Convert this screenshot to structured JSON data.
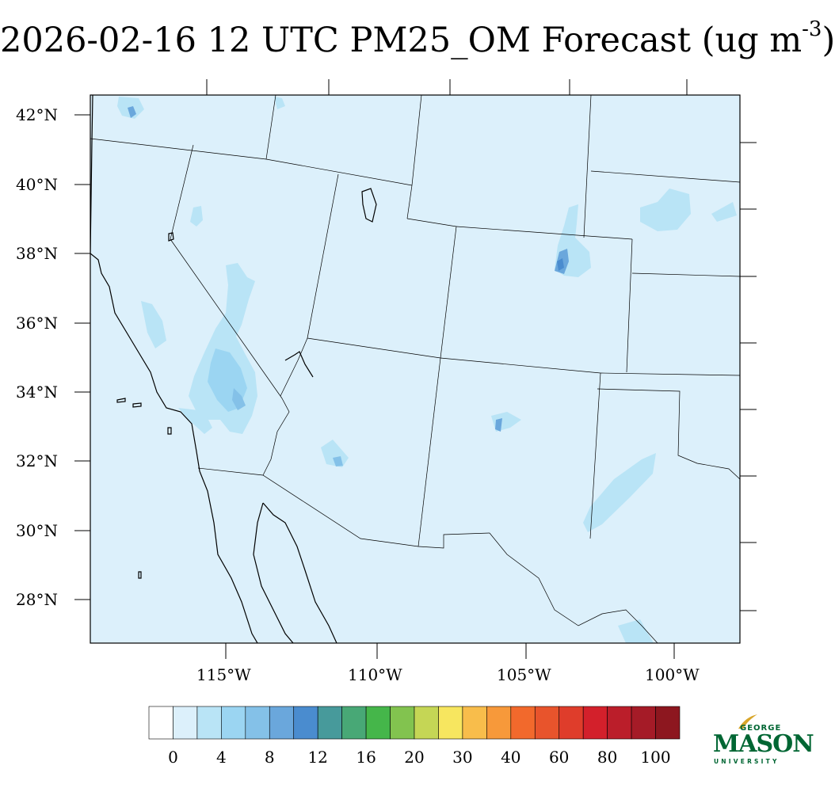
{
  "title": {
    "main": "2026-02-16 12 UTC PM25_OM Forecast (ug m",
    "exponent": "-3",
    "close": ")"
  },
  "map": {
    "variable": "PM25_OM",
    "lat_labels": [
      "42°N",
      "40°N",
      "38°N",
      "36°N",
      "34°N",
      "32°N",
      "30°N",
      "28°N"
    ],
    "lon_labels": [
      "115°W",
      "110°W",
      "105°W",
      "100°W"
    ],
    "background_color": "#dcf0fb",
    "border_color": "#000000"
  },
  "colorbar": {
    "labels": [
      "0",
      "4",
      "8",
      "12",
      "16",
      "20",
      "30",
      "40",
      "60",
      "80",
      "100"
    ],
    "colors": [
      "#ffffff",
      "#dcf0fb",
      "#b9e4f6",
      "#9bd5f2",
      "#84c1e8",
      "#6aa7dc",
      "#4a8ccf",
      "#479a9b",
      "#48a876",
      "#45b64a",
      "#82c34f",
      "#c5d655",
      "#f7e65f",
      "#f8bd4b",
      "#f7993a",
      "#f2692c",
      "#e8542c",
      "#df3d2b",
      "#d3202b",
      "#bb1e2a",
      "#a51b27",
      "#8d171f"
    ]
  },
  "logo": {
    "line1": "GEORGE",
    "line2": "MASON",
    "line3": "UNIVERSITY",
    "color": "#006633",
    "accent": "#d9a62a"
  }
}
